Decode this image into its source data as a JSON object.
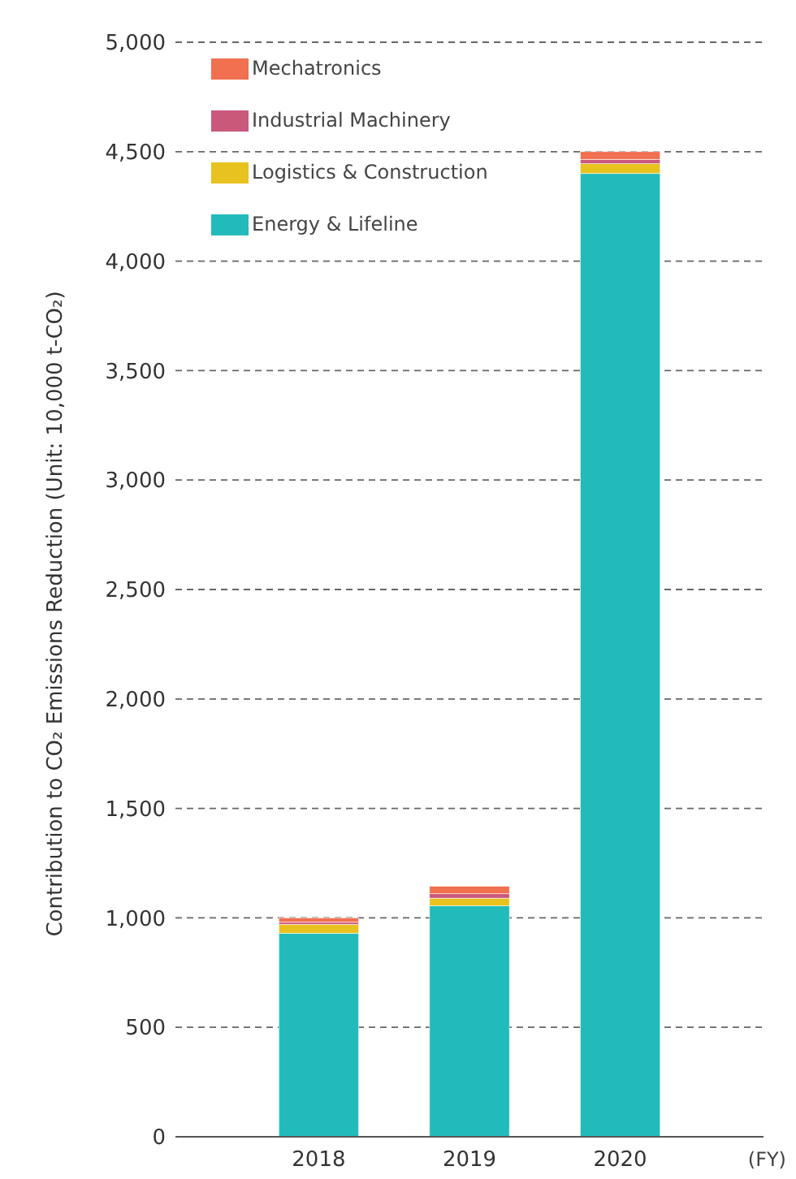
{
  "chart_data": {
    "type": "bar",
    "stacked": true,
    "categories": [
      "2018",
      "2019",
      "2020"
    ],
    "xlabel": "(FY)",
    "ylabel": "Contribution to CO₂ Emissions Reduction (Unit: 10,000 t-CO₂)",
    "series": [
      {
        "name": "Energy & Lifeline",
        "color": "#22bbbb",
        "values": [
          930,
          1055,
          4400
        ]
      },
      {
        "name": "Logistics & Construction",
        "color": "#e8c21e",
        "values": [
          40,
          35,
          45
        ]
      },
      {
        "name": "Industrial Machinery",
        "color": "#c9587a",
        "values": [
          10,
          20,
          20
        ]
      },
      {
        "name": "Mechatronics",
        "color": "#f07050",
        "values": [
          20,
          35,
          35
        ]
      }
    ],
    "ylim": [
      0,
      5000
    ],
    "yticks": [
      {
        "value": 0,
        "label": "0"
      },
      {
        "value": 500,
        "label": "500"
      },
      {
        "value": 1000,
        "label": "1,000"
      },
      {
        "value": 1500,
        "label": "1,500"
      },
      {
        "value": 2000,
        "label": "2,000"
      },
      {
        "value": 2500,
        "label": "2,500"
      },
      {
        "value": 3000,
        "label": "3,000"
      },
      {
        "value": 3500,
        "label": "3,500"
      },
      {
        "value": 4000,
        "label": "4,000"
      },
      {
        "value": 4500,
        "label": "4,500"
      },
      {
        "value": 5000,
        "label": "5,000"
      }
    ],
    "grid": "y",
    "legend": "top left"
  }
}
